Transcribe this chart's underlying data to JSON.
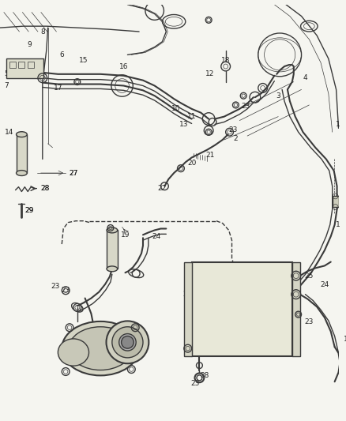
{
  "bg_color": "#f5f5f0",
  "line_color": "#3a3a3a",
  "label_color": "#222222",
  "fig_width": 4.38,
  "fig_height": 5.33,
  "dpi": 100
}
